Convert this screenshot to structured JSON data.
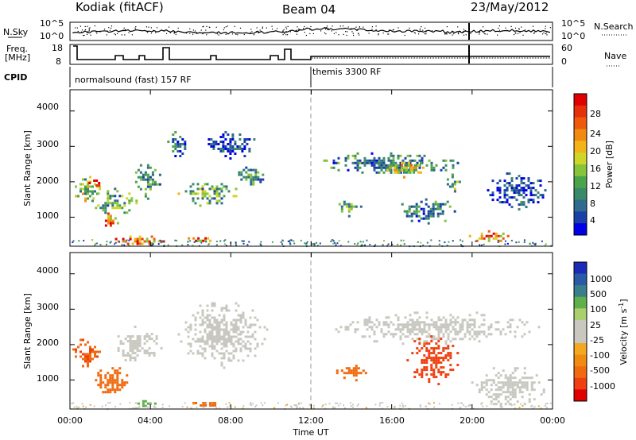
{
  "header": {
    "title": "Kodiak (fitACF)",
    "beam": "Beam 04",
    "date": "23/May/2012"
  },
  "noise_panel": {
    "left_label": "N.Sky",
    "right_label": "N.Search",
    "left_ticks": [
      "10^5",
      "10^0"
    ],
    "right_ticks": [
      "10^5",
      "10^0"
    ]
  },
  "freq_panel": {
    "left_label_1": "Freq.",
    "left_label_2": "[MHz]",
    "right_label": "Nave",
    "left_ticks": [
      "18",
      "8"
    ],
    "right_ticks": [
      "60",
      "0"
    ]
  },
  "cpid_panel": {
    "label": "CPID",
    "mode_1": "normalsound (fast) 157 RF",
    "mode_2": "themis 3300 RF",
    "mode_2_start_hour": 12
  },
  "axes": {
    "ylabel": "Slant Range [km]",
    "xlabel": "Time UT",
    "yticks": [
      "4000",
      "3000",
      "2000",
      "1000"
    ],
    "xticks": [
      "00:00",
      "04:00",
      "08:00",
      "12:00",
      "16:00",
      "20:00",
      "00:00"
    ]
  },
  "colorbars": {
    "power": {
      "label": "Power [dB]",
      "ticks": [
        "28",
        "24",
        "20",
        "16",
        "12",
        "8",
        "4"
      ],
      "colors": [
        "#0000e6",
        "#1a3fa8",
        "#2e6b8c",
        "#3a8a6a",
        "#4aa54a",
        "#86c43a",
        "#cfd62a",
        "#f2b418",
        "#f08a10",
        "#ee5a0a",
        "#e6300a",
        "#e00000"
      ]
    },
    "velocity": {
      "label": "Velocity [m s⁻¹]",
      "label_prefix": "Velocity  [m s",
      "label_exp": "-1",
      "label_suffix": "]",
      "ticks": [
        "1000",
        "500",
        "100",
        "25",
        "-25",
        "-100",
        "-500",
        "-1000"
      ],
      "colors": [
        "#1c2ab8",
        "#2a5aa6",
        "#3a7e8a",
        "#5fb04a",
        "#a9cf6e",
        "#c8c8c0",
        "#c8c8c0",
        "#f2a820",
        "#f08a10",
        "#f06a10",
        "#ee4010",
        "#e00000"
      ]
    }
  },
  "chart_data": [
    {
      "type": "heatmap",
      "title": "Power [dB]",
      "xlabel": "Time UT",
      "ylabel": "Slant Range [km]",
      "xlim": [
        0,
        24
      ],
      "ylim": [
        180,
        4600
      ],
      "colorbar_ticks": [
        4,
        8,
        12,
        16,
        20,
        24,
        28
      ],
      "blobs": [
        {
          "t0": 0.0,
          "t1": 1.6,
          "r0": 1300,
          "r1": 2300,
          "value": 14
        },
        {
          "t0": 0.8,
          "t1": 1.6,
          "r0": 1800,
          "r1": 2200,
          "value": 26
        },
        {
          "t0": 1.5,
          "t1": 2.5,
          "r0": 700,
          "r1": 1200,
          "value": 22
        },
        {
          "t0": 2.0,
          "t1": 5.0,
          "r0": 200,
          "r1": 550,
          "value": 24
        },
        {
          "t0": 1.0,
          "t1": 3.5,
          "r0": 1000,
          "r1": 1900,
          "value": 12
        },
        {
          "t0": 3.0,
          "t1": 4.6,
          "r0": 1500,
          "r1": 2700,
          "value": 10
        },
        {
          "t0": 4.6,
          "t1": 6.0,
          "r0": 2700,
          "r1": 3500,
          "value": 8
        },
        {
          "t0": 5.0,
          "t1": 8.5,
          "r0": 1300,
          "r1": 2100,
          "value": 12
        },
        {
          "t0": 5.5,
          "t1": 7.5,
          "r0": 300,
          "r1": 500,
          "value": 22
        },
        {
          "t0": 6.5,
          "t1": 9.5,
          "r0": 2600,
          "r1": 3500,
          "value": 6
        },
        {
          "t0": 8.0,
          "t1": 10.0,
          "r0": 1900,
          "r1": 2500,
          "value": 10
        },
        {
          "t0": 12.0,
          "t1": 20.0,
          "r0": 2200,
          "r1": 2900,
          "value": 9
        },
        {
          "t0": 15.5,
          "t1": 18.0,
          "r0": 2100,
          "r1": 2700,
          "value": 16
        },
        {
          "t0": 18.5,
          "t1": 19.6,
          "r0": 1700,
          "r1": 2300,
          "value": 14
        },
        {
          "t0": 13.0,
          "t1": 14.5,
          "r0": 1000,
          "r1": 1600,
          "value": 12
        },
        {
          "t0": 16.0,
          "t1": 19.5,
          "r0": 800,
          "r1": 1600,
          "value": 9
        },
        {
          "t0": 19.6,
          "t1": 22.0,
          "r0": 250,
          "r1": 700,
          "value": 22
        },
        {
          "t0": 20.5,
          "t1": 24.0,
          "r0": 1200,
          "r1": 2400,
          "value": 6
        }
      ]
    },
    {
      "type": "heatmap",
      "title": "Velocity [m s-1]",
      "xlabel": "Time UT",
      "ylabel": "Slant Range [km]",
      "xlim": [
        0,
        24
      ],
      "ylim": [
        180,
        4600
      ],
      "colorbar_ticks": [
        -1000,
        -500,
        -100,
        -25,
        25,
        100,
        500,
        1000
      ],
      "blobs": [
        {
          "t0": 0.0,
          "t1": 1.6,
          "r0": 1300,
          "r1": 2300,
          "value": -300
        },
        {
          "t0": 1.0,
          "t1": 3.0,
          "r0": 500,
          "r1": 1500,
          "value": -200
        },
        {
          "t0": 2.0,
          "t1": 4.6,
          "r0": 1400,
          "r1": 2600,
          "value": 0
        },
        {
          "t0": 3.0,
          "t1": 4.5,
          "r0": 250,
          "r1": 500,
          "value": 150
        },
        {
          "t0": 5.0,
          "t1": 10.0,
          "r0": 1300,
          "r1": 3400,
          "value": 0
        },
        {
          "t0": 5.5,
          "t1": 8.0,
          "r0": 280,
          "r1": 450,
          "value": -150
        },
        {
          "t0": 12.0,
          "t1": 24.0,
          "r0": 2000,
          "r1": 3000,
          "value": 0
        },
        {
          "t0": 13.0,
          "t1": 15.0,
          "r0": 1000,
          "r1": 1500,
          "value": -200
        },
        {
          "t0": 16.5,
          "t1": 19.5,
          "r0": 800,
          "r1": 2400,
          "value": -400
        },
        {
          "t0": 19.6,
          "t1": 24.0,
          "r0": 200,
          "r1": 1500,
          "value": 0
        }
      ]
    }
  ]
}
